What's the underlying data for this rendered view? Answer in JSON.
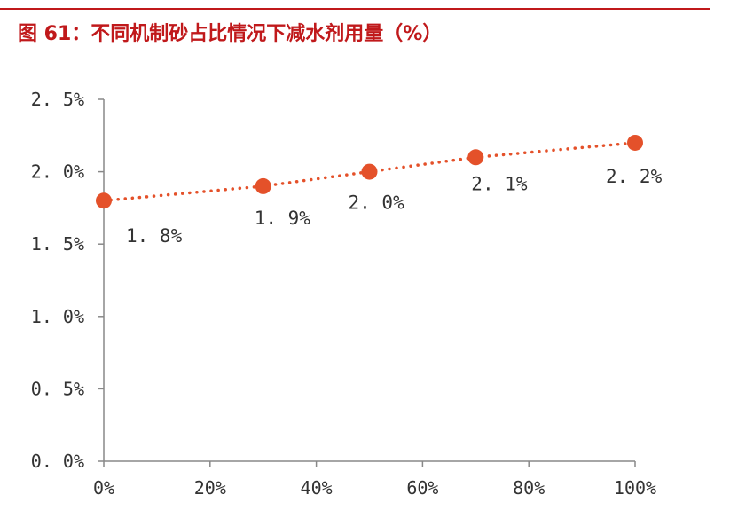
{
  "header": {
    "title": "图 61：不同机制砂占比情况下减水剂用量（%）"
  },
  "colors": {
    "accent": "#c0191b",
    "series": "#e4512a",
    "axis": "#888888",
    "text": "#333333"
  },
  "chart_data": {
    "type": "line",
    "title": "图 61：不同机制砂占比情况下减水剂用量（%）",
    "xlabel": "",
    "ylabel": "",
    "x": [
      0,
      30,
      50,
      70,
      100
    ],
    "xlim": [
      0,
      100
    ],
    "ylim": [
      0,
      2.5
    ],
    "x_ticks": [
      0,
      20,
      40,
      60,
      80,
      100
    ],
    "x_tick_labels": [
      "0%",
      "20%",
      "40%",
      "60%",
      "80%",
      "100%"
    ],
    "y_ticks": [
      0,
      0.5,
      1.0,
      1.5,
      2.0,
      2.5
    ],
    "y_tick_labels": [
      "0. 0%",
      "0. 5%",
      "1. 0%",
      "1. 5%",
      "2. 0%",
      "2. 5%"
    ],
    "grid": false,
    "legend": "none",
    "line_style": "dotted",
    "series": [
      {
        "values": [
          1.8,
          1.9,
          2.0,
          2.1,
          2.2
        ],
        "labels": [
          "1. 8%",
          "1. 9%",
          "2. 0%",
          "2. 1%",
          "2. 2%"
        ],
        "color": "#e4512a"
      }
    ]
  }
}
